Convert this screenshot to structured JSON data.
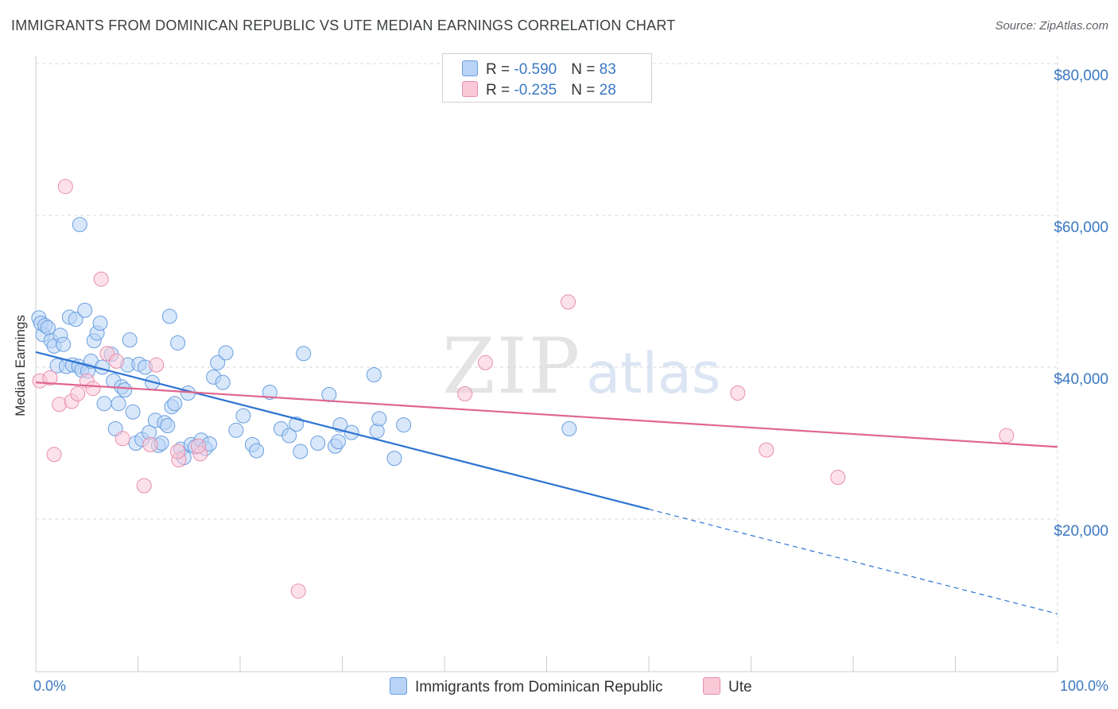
{
  "title": "IMMIGRANTS FROM DOMINICAN REPUBLIC VS UTE MEDIAN EARNINGS CORRELATION CHART",
  "source": "Source: ZipAtlas.com",
  "watermark": {
    "zip": "ZIP",
    "atlas": "atlas"
  },
  "legend_top": [
    {
      "r_label": "R = ",
      "r_value": "-0.590",
      "n_label": "N = ",
      "n_value": "83"
    },
    {
      "r_label": "R = ",
      "r_value": "-0.235",
      "n_label": "N = ",
      "n_value": "28"
    }
  ],
  "colors": {
    "blue_fill": "#b8d3f5",
    "blue_line": "#2c73d2",
    "pink_fill": "#f9c9d8",
    "pink_line": "#e06690",
    "grid": "#d9d9d9",
    "tick_text": "#3b78c2"
  },
  "chart_data": {
    "type": "scatter",
    "title": "IMMIGRANTS FROM DOMINICAN REPUBLIC VS UTE MEDIAN EARNINGS CORRELATION CHART",
    "xlabel": "",
    "ylabel": "Median Earnings",
    "xlim": [
      0,
      100
    ],
    "ylim": [
      0,
      82000
    ],
    "x_tick_labels": [
      "0.0%",
      "100.0%"
    ],
    "y_ticks": [
      20000,
      40000,
      60000,
      80000
    ],
    "y_tick_labels": [
      "$20,000",
      "$40,000",
      "$60,000",
      "$80,000"
    ],
    "grid": true,
    "legend_position": "bottom",
    "series": [
      {
        "name": "Immigrants from Dominican Republic",
        "color": "#b8d3f5",
        "stroke": "#6a9fe0",
        "points": [
          [
            0.3,
            46500
          ],
          [
            0.5,
            45800
          ],
          [
            0.7,
            44300
          ],
          [
            0.9,
            45500
          ],
          [
            1.2,
            45200
          ],
          [
            1.5,
            43500
          ],
          [
            1.8,
            42800
          ],
          [
            2.1,
            40200
          ],
          [
            2.4,
            44200
          ],
          [
            2.7,
            43000
          ],
          [
            3.0,
            40100
          ],
          [
            3.3,
            46600
          ],
          [
            3.6,
            40300
          ],
          [
            3.9,
            46300
          ],
          [
            4.2,
            40100
          ],
          [
            4.5,
            39600
          ],
          [
            4.8,
            47500
          ],
          [
            5.1,
            39500
          ],
          [
            5.4,
            40800
          ],
          [
            5.7,
            43500
          ],
          [
            6.0,
            44500
          ],
          [
            6.3,
            45800
          ],
          [
            6.5,
            40000
          ],
          [
            6.7,
            35200
          ],
          [
            7.4,
            41700
          ],
          [
            7.6,
            38200
          ],
          [
            7.8,
            31900
          ],
          [
            8.1,
            35200
          ],
          [
            8.4,
            37400
          ],
          [
            8.7,
            37000
          ],
          [
            9.0,
            40300
          ],
          [
            9.2,
            43600
          ],
          [
            9.5,
            34100
          ],
          [
            9.8,
            30000
          ],
          [
            10.1,
            40400
          ],
          [
            10.4,
            30500
          ],
          [
            10.7,
            40000
          ],
          [
            11.1,
            31400
          ],
          [
            11.4,
            38000
          ],
          [
            11.7,
            33000
          ],
          [
            12.0,
            29700
          ],
          [
            12.3,
            30000
          ],
          [
            12.6,
            32700
          ],
          [
            12.9,
            32300
          ],
          [
            13.1,
            46700
          ],
          [
            13.3,
            34800
          ],
          [
            13.6,
            35200
          ],
          [
            13.9,
            43200
          ],
          [
            14.2,
            29200
          ],
          [
            14.5,
            28100
          ],
          [
            14.9,
            36600
          ],
          [
            15.2,
            29800
          ],
          [
            15.6,
            29500
          ],
          [
            16.2,
            30400
          ],
          [
            16.6,
            29300
          ],
          [
            17.0,
            29900
          ],
          [
            17.4,
            38700
          ],
          [
            17.8,
            40600
          ],
          [
            18.3,
            38000
          ],
          [
            18.6,
            41900
          ],
          [
            20.3,
            33600
          ],
          [
            19.6,
            31700
          ],
          [
            21.2,
            29800
          ],
          [
            21.6,
            29000
          ],
          [
            22.9,
            36700
          ],
          [
            24.0,
            31900
          ],
          [
            24.8,
            31000
          ],
          [
            25.5,
            32500
          ],
          [
            25.9,
            28900
          ],
          [
            26.2,
            41800
          ],
          [
            27.6,
            30000
          ],
          [
            28.7,
            36400
          ],
          [
            29.3,
            29600
          ],
          [
            29.6,
            30200
          ],
          [
            29.8,
            32400
          ],
          [
            30.9,
            31400
          ],
          [
            33.1,
            39000
          ],
          [
            33.4,
            31600
          ],
          [
            33.6,
            33200
          ],
          [
            35.1,
            28000
          ],
          [
            36.0,
            32400
          ],
          [
            52.2,
            31900
          ],
          [
            4.3,
            58800
          ]
        ]
      },
      {
        "name": "Ute",
        "color": "#f9c9d8",
        "stroke": "#e88eac",
        "points": [
          [
            0.4,
            38200
          ],
          [
            1.4,
            38600
          ],
          [
            1.8,
            28500
          ],
          [
            2.3,
            35100
          ],
          [
            2.9,
            63800
          ],
          [
            3.5,
            35500
          ],
          [
            4.1,
            36500
          ],
          [
            5.0,
            38200
          ],
          [
            5.6,
            37200
          ],
          [
            6.4,
            51600
          ],
          [
            7.0,
            41800
          ],
          [
            7.9,
            40800
          ],
          [
            8.5,
            30600
          ],
          [
            10.6,
            24400
          ],
          [
            11.2,
            29800
          ],
          [
            11.8,
            40300
          ],
          [
            14.0,
            27800
          ],
          [
            16.1,
            28600
          ],
          [
            25.7,
            10500
          ],
          [
            42.0,
            36500
          ],
          [
            44.0,
            40600
          ],
          [
            52.1,
            48600
          ],
          [
            68.7,
            36600
          ],
          [
            71.5,
            29100
          ],
          [
            78.5,
            25500
          ],
          [
            95.0,
            31000
          ],
          [
            13.9,
            28900
          ],
          [
            15.9,
            29600
          ]
        ]
      }
    ],
    "trend_lines": [
      {
        "series": "Immigrants from Dominican Republic",
        "x_start": 0,
        "y_start": 42000,
        "x_solid_end": 60,
        "x_end": 100,
        "y_end": 7500
      },
      {
        "series": "Ute",
        "x_start": 0,
        "y_start": 38000,
        "x_end": 100,
        "y_end": 29500
      }
    ]
  }
}
